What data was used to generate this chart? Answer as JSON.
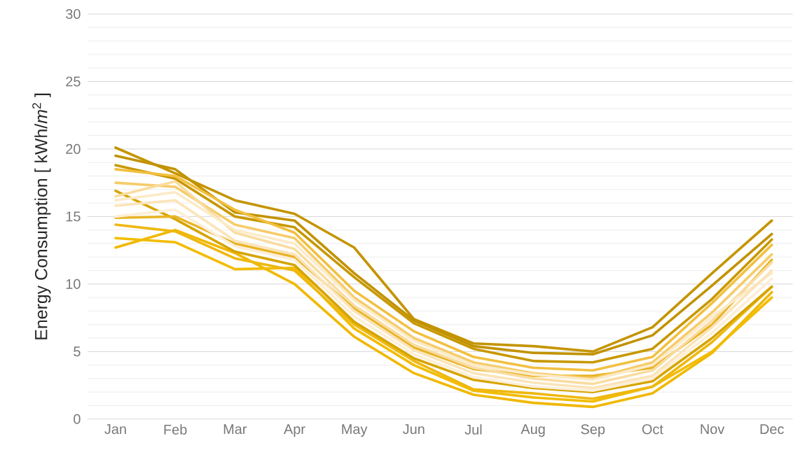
{
  "chart_data": {
    "type": "line",
    "ylabel": "Energy Consumption  [ kWh/*m*$^{2}$ ]",
    "categories": [
      "Jan",
      "Feb",
      "Mar",
      "Apr",
      "May",
      "Jun",
      "Jul",
      "Aug",
      "Sep",
      "Oct",
      "Nov",
      "Dec"
    ],
    "ylim": [
      0,
      30
    ],
    "yticks": [
      0,
      5,
      10,
      15,
      20,
      25,
      30
    ],
    "grid": true,
    "marker": "none",
    "line_style": "solid",
    "series": [
      {
        "color": "#f0b800",
        "values": [
          12.7,
          14.0,
          12.3,
          10.0,
          6.1,
          3.4,
          1.8,
          1.2,
          0.9,
          1.9,
          4.9,
          9.4
        ]
      },
      {
        "color": "#f2bc00",
        "values": [
          13.4,
          13.1,
          11.1,
          11.2,
          6.7,
          4.0,
          2.1,
          1.6,
          1.3,
          2.4,
          5.0,
          9.0
        ]
      },
      {
        "color": "#eeb810",
        "values": [
          14.4,
          13.9,
          11.9,
          11.0,
          7.0,
          4.3,
          2.2,
          1.9,
          1.5,
          2.4,
          5.7,
          9.8
        ]
      },
      {
        "color": "#d6a400",
        "values": [
          16.9,
          14.8,
          12.4,
          11.4,
          7.2,
          4.5,
          2.9,
          2.3,
          2.0,
          2.8,
          6.0,
          9.8
        ]
      },
      {
        "color": "#e8b428",
        "values": [
          14.9,
          15.0,
          13.0,
          12.0,
          8.2,
          5.3,
          3.7,
          3.2,
          3.2,
          3.8,
          7.0,
          11.8
        ]
      },
      {
        "color": "#c49400",
        "values": [
          20.1,
          18.2,
          16.2,
          15.2,
          12.7,
          7.4,
          5.6,
          5.4,
          5.0,
          6.8,
          10.8,
          14.7
        ]
      },
      {
        "color": "#c29200",
        "values": [
          19.5,
          18.5,
          15.3,
          14.7,
          10.8,
          7.3,
          5.4,
          4.9,
          4.8,
          6.2,
          9.9,
          13.7
        ]
      },
      {
        "color": "#c89800",
        "values": [
          18.8,
          17.8,
          15.0,
          14.2,
          10.5,
          7.1,
          5.2,
          4.3,
          4.2,
          5.2,
          8.9,
          13.3
        ]
      },
      {
        "color": "#f2c040",
        "values": [
          18.5,
          18.0,
          15.5,
          13.8,
          9.5,
          6.5,
          4.6,
          3.8,
          3.6,
          4.6,
          8.6,
          12.9
        ]
      },
      {
        "color": "#f6cc6a",
        "values": [
          17.5,
          17.2,
          14.4,
          13.4,
          9.0,
          6.0,
          4.2,
          3.4,
          3.0,
          4.2,
          7.9,
          12.2
        ]
      },
      {
        "color": "#f9dca0",
        "values": [
          16.5,
          17.6,
          13.8,
          12.6,
          8.4,
          5.5,
          3.8,
          3.0,
          2.6,
          3.6,
          7.3,
          11.6
        ]
      },
      {
        "color": "#fcebc8",
        "values": [
          16.2,
          16.8,
          14.0,
          13.0,
          8.8,
          5.8,
          4.0,
          3.3,
          2.9,
          4.0,
          7.6,
          10.8
        ]
      },
      {
        "color": "#fbe4b8",
        "values": [
          15.8,
          16.2,
          13.2,
          12.2,
          8.0,
          5.1,
          3.4,
          2.7,
          2.3,
          3.2,
          6.8,
          11.0
        ]
      },
      {
        "color": "#fdeed6",
        "values": [
          15.0,
          15.5,
          12.8,
          11.8,
          7.6,
          4.8,
          3.1,
          2.4,
          2.1,
          3.0,
          6.4,
          10.4
        ]
      }
    ]
  }
}
